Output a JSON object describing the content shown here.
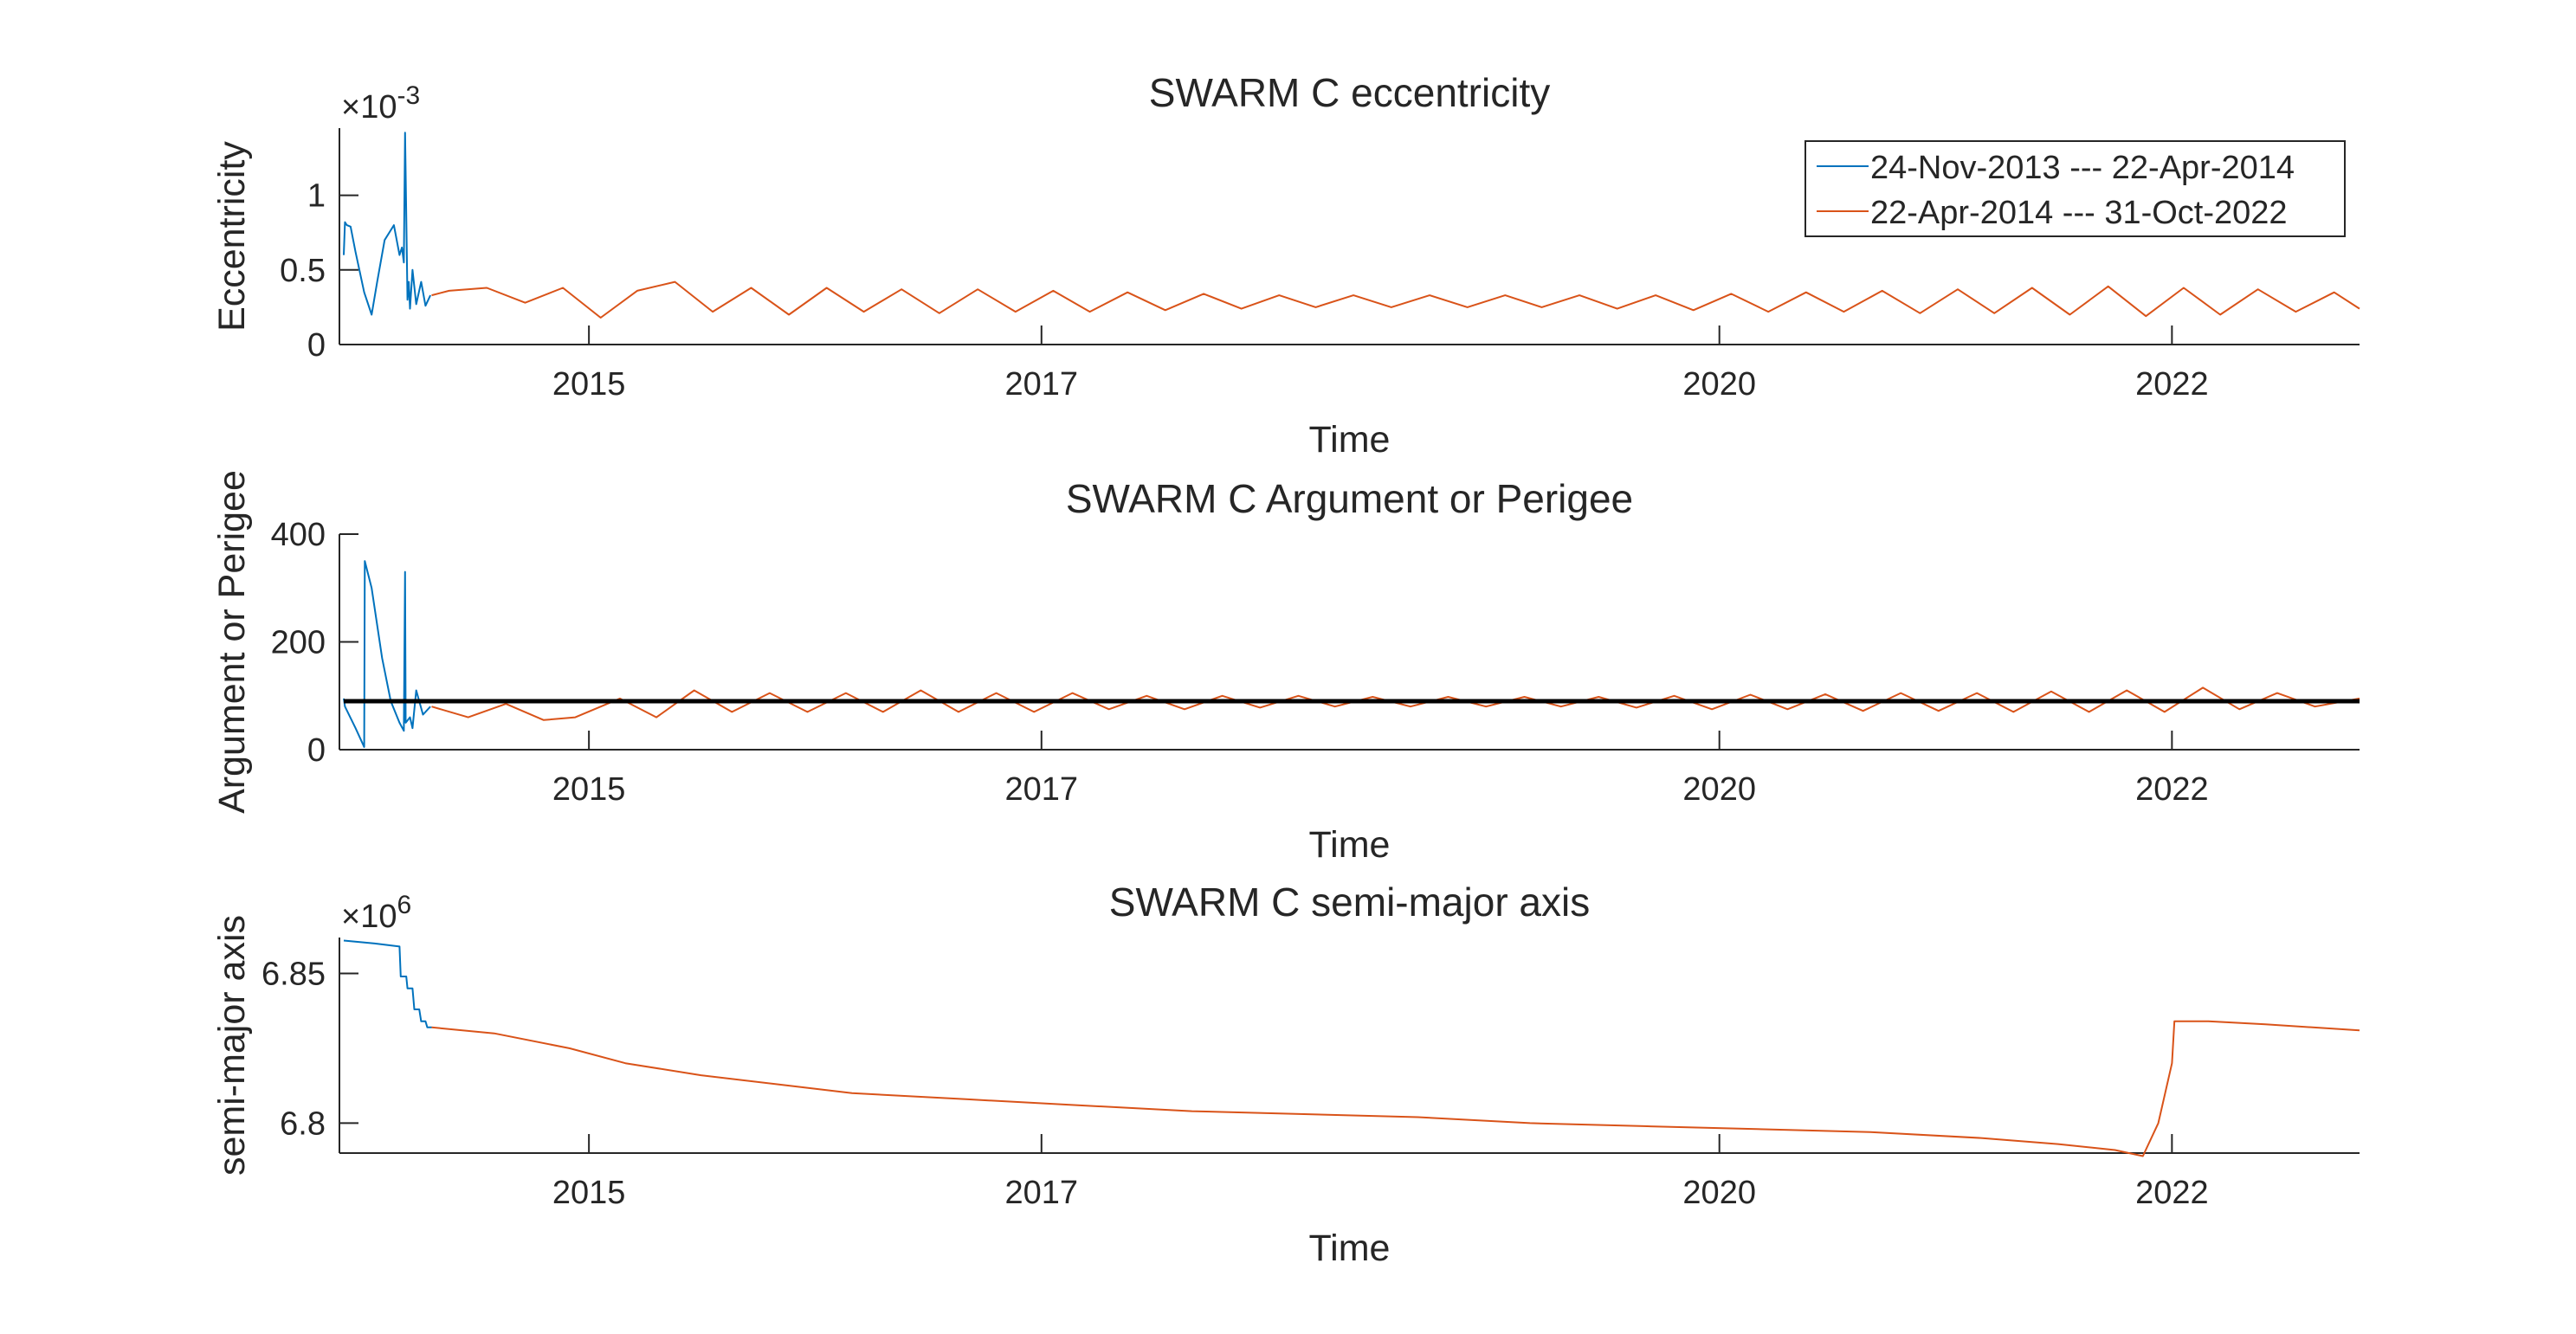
{
  "colors": {
    "series1": "#0072BD",
    "series2": "#D95319",
    "reference": "#000000",
    "axis": "#262626",
    "background": "#ffffff"
  },
  "chart_data": [
    {
      "type": "line",
      "title": "SWARM C eccentricity",
      "xlabel": "Time",
      "ylabel": "Eccentricity",
      "exponent_base": "×10",
      "exponent_power": "-3",
      "xlim": [
        "2013-11-24",
        "2022-10-31"
      ],
      "ylim": [
        0,
        1.45
      ],
      "yticks": [
        0,
        0.5,
        1
      ],
      "yticklabels": [
        "0",
        "0.5",
        "1"
      ],
      "xticks": [
        "2015-01-01",
        "2017-01-01",
        "2020-01-01",
        "2022-01-01"
      ],
      "xticklabels": [
        "2015",
        "2017",
        "2020",
        "2022"
      ],
      "grid": false,
      "legend_position": "top-right",
      "legend": [
        "24-Nov-2013 --- 22-Apr-2014",
        "22-Apr-2014 --- 31-Oct-2022"
      ],
      "series": [
        {
          "name": "24-Nov-2013 --- 22-Apr-2014",
          "x": [
            "2013-12-01",
            "2013-12-03",
            "2013-12-06",
            "2013-12-12",
            "2013-12-20",
            "2014-01-03",
            "2014-01-15",
            "2014-01-24",
            "2014-02-05",
            "2014-02-20",
            "2014-03-01",
            "2014-03-05",
            "2014-03-08",
            "2014-03-10",
            "2014-03-14",
            "2014-03-16",
            "2014-03-18",
            "2014-03-22",
            "2014-03-28",
            "2014-04-05",
            "2014-04-12",
            "2014-04-20"
          ],
          "y": [
            0.6,
            0.82,
            0.8,
            0.79,
            0.62,
            0.35,
            0.2,
            0.42,
            0.7,
            0.8,
            0.6,
            0.65,
            0.55,
            1.42,
            0.3,
            0.42,
            0.24,
            0.5,
            0.27,
            0.42,
            0.26,
            0.33
          ]
        },
        {
          "name": "22-Apr-2014 --- 31-Oct-2022",
          "x": [
            "2014-04-22",
            "2014-05-20",
            "2014-07-20",
            "2014-09-20",
            "2014-11-20",
            "2015-01-20",
            "2015-03-20",
            "2015-05-20",
            "2015-07-20",
            "2015-09-20",
            "2015-11-20",
            "2016-01-20",
            "2016-03-20",
            "2016-05-20",
            "2016-07-20",
            "2016-09-20",
            "2016-11-20",
            "2017-01-20",
            "2017-03-20",
            "2017-05-20",
            "2017-07-20",
            "2017-09-20",
            "2017-11-20",
            "2018-01-20",
            "2018-03-20",
            "2018-05-20",
            "2018-07-20",
            "2018-09-20",
            "2018-11-20",
            "2019-01-20",
            "2019-03-20",
            "2019-05-20",
            "2019-07-20",
            "2019-09-20",
            "2019-11-20",
            "2020-01-20",
            "2020-03-20",
            "2020-05-20",
            "2020-07-20",
            "2020-09-20",
            "2020-11-20",
            "2021-01-20",
            "2021-03-20",
            "2021-05-20",
            "2021-07-20",
            "2021-09-20",
            "2021-11-20",
            "2022-01-20",
            "2022-03-20",
            "2022-05-20",
            "2022-07-20",
            "2022-09-20",
            "2022-10-31"
          ],
          "y": [
            0.33,
            0.36,
            0.38,
            0.28,
            0.38,
            0.18,
            0.36,
            0.42,
            0.22,
            0.38,
            0.2,
            0.38,
            0.22,
            0.37,
            0.21,
            0.37,
            0.22,
            0.36,
            0.22,
            0.35,
            0.23,
            0.34,
            0.24,
            0.33,
            0.25,
            0.33,
            0.25,
            0.33,
            0.25,
            0.33,
            0.25,
            0.33,
            0.24,
            0.33,
            0.23,
            0.34,
            0.22,
            0.35,
            0.22,
            0.36,
            0.21,
            0.37,
            0.21,
            0.38,
            0.2,
            0.39,
            0.19,
            0.38,
            0.2,
            0.37,
            0.22,
            0.35,
            0.24
          ]
        }
      ]
    },
    {
      "type": "line",
      "title": "SWARM C Argument or Perigee",
      "xlabel": "Time",
      "ylabel": "Argument or Perigee",
      "xlim": [
        "2013-11-24",
        "2022-10-31"
      ],
      "ylim": [
        0,
        400
      ],
      "yticks": [
        0,
        200,
        400
      ],
      "yticklabels": [
        "0",
        "200",
        "400"
      ],
      "xticks": [
        "2015-01-01",
        "2017-01-01",
        "2020-01-01",
        "2022-01-01"
      ],
      "xticklabels": [
        "2015",
        "2017",
        "2020",
        "2022"
      ],
      "grid": false,
      "series": [
        {
          "name": "",
          "x": [
            "2013-12-01",
            "2013-12-03",
            "2013-12-20",
            "2014-01-03",
            "2014-01-04",
            "2014-01-15",
            "2014-02-01",
            "2014-02-15",
            "2014-03-01",
            "2014-03-08",
            "2014-03-10",
            "2014-03-11",
            "2014-03-18",
            "2014-03-22",
            "2014-03-28",
            "2014-04-08",
            "2014-04-20"
          ],
          "y": [
            95,
            80,
            40,
            5,
            350,
            300,
            170,
            90,
            50,
            35,
            330,
            50,
            60,
            40,
            110,
            65,
            80
          ]
        },
        {
          "name": "",
          "x": [
            "2014-04-22",
            "2014-06-20",
            "2014-08-20",
            "2014-10-20",
            "2014-12-10",
            "2015-02-20",
            "2015-04-20",
            "2015-06-20",
            "2015-08-20",
            "2015-10-20",
            "2015-12-20",
            "2016-02-20",
            "2016-04-20",
            "2016-06-20",
            "2016-08-20",
            "2016-10-20",
            "2016-12-20",
            "2017-02-20",
            "2017-04-20",
            "2017-06-20",
            "2017-08-20",
            "2017-10-20",
            "2017-12-20",
            "2018-02-20",
            "2018-04-20",
            "2018-06-20",
            "2018-08-20",
            "2018-10-20",
            "2018-12-20",
            "2019-02-20",
            "2019-04-20",
            "2019-06-20",
            "2019-08-20",
            "2019-10-20",
            "2019-12-20",
            "2020-02-20",
            "2020-04-20",
            "2020-06-20",
            "2020-08-20",
            "2020-10-20",
            "2020-12-20",
            "2021-02-20",
            "2021-04-20",
            "2021-06-20",
            "2021-08-20",
            "2021-10-20",
            "2021-12-20",
            "2022-02-20",
            "2022-04-20",
            "2022-06-20",
            "2022-08-20",
            "2022-10-31"
          ],
          "y": [
            80,
            60,
            85,
            55,
            60,
            95,
            60,
            110,
            70,
            105,
            70,
            105,
            70,
            110,
            70,
            105,
            70,
            105,
            75,
            100,
            75,
            100,
            78,
            100,
            80,
            98,
            80,
            98,
            80,
            98,
            80,
            98,
            78,
            100,
            75,
            102,
            75,
            103,
            72,
            105,
            72,
            105,
            70,
            108,
            70,
            110,
            70,
            115,
            75,
            105,
            80,
            95
          ]
        },
        {
          "name": "",
          "x": [
            "2013-12-01",
            "2022-10-31"
          ],
          "y": [
            90,
            90
          ]
        }
      ]
    },
    {
      "type": "line",
      "title": "SWARM C semi-major axis",
      "xlabel": "Time",
      "ylabel": "semi-major axis",
      "exponent_base": "×10",
      "exponent_power": "6",
      "xlim": [
        "2013-11-24",
        "2022-10-31"
      ],
      "ylim": [
        6.79,
        6.862
      ],
      "yticks": [
        6.8,
        6.85
      ],
      "yticklabels": [
        "6.8",
        "6.85"
      ],
      "xticks": [
        "2015-01-01",
        "2017-01-01",
        "2020-01-01",
        "2022-01-01"
      ],
      "xticklabels": [
        "2015",
        "2017",
        "2020",
        "2022"
      ],
      "grid": false,
      "series": [
        {
          "name": "",
          "x": [
            "2013-12-01",
            "2014-01-20",
            "2014-03-01",
            "2014-03-03",
            "2014-03-12",
            "2014-03-14",
            "2014-03-22",
            "2014-03-25",
            "2014-04-02",
            "2014-04-05",
            "2014-04-12",
            "2014-04-15",
            "2014-04-22"
          ],
          "y": [
            6.861,
            6.86,
            6.859,
            6.849,
            6.849,
            6.845,
            6.845,
            6.838,
            6.838,
            6.834,
            6.834,
            6.832,
            6.832
          ]
        },
        {
          "name": "",
          "x": [
            "2014-04-22",
            "2014-08-01",
            "2014-12-01",
            "2015-03-01",
            "2015-07-01",
            "2015-11-01",
            "2016-03-01",
            "2016-09-01",
            "2017-03-01",
            "2017-09-01",
            "2018-03-01",
            "2018-09-01",
            "2019-03-01",
            "2019-09-01",
            "2020-03-01",
            "2020-09-01",
            "2021-03-01",
            "2021-07-01",
            "2021-10-01",
            "2021-11-15",
            "2021-12-10",
            "2022-01-01",
            "2022-01-05",
            "2022-03-01",
            "2022-06-01",
            "2022-10-31"
          ],
          "y": [
            6.832,
            6.83,
            6.825,
            6.82,
            6.816,
            6.813,
            6.81,
            6.808,
            6.806,
            6.804,
            6.803,
            6.802,
            6.8,
            6.799,
            6.798,
            6.797,
            6.795,
            6.793,
            6.791,
            6.789,
            6.8,
            6.82,
            6.834,
            6.834,
            6.833,
            6.831
          ]
        }
      ]
    }
  ]
}
